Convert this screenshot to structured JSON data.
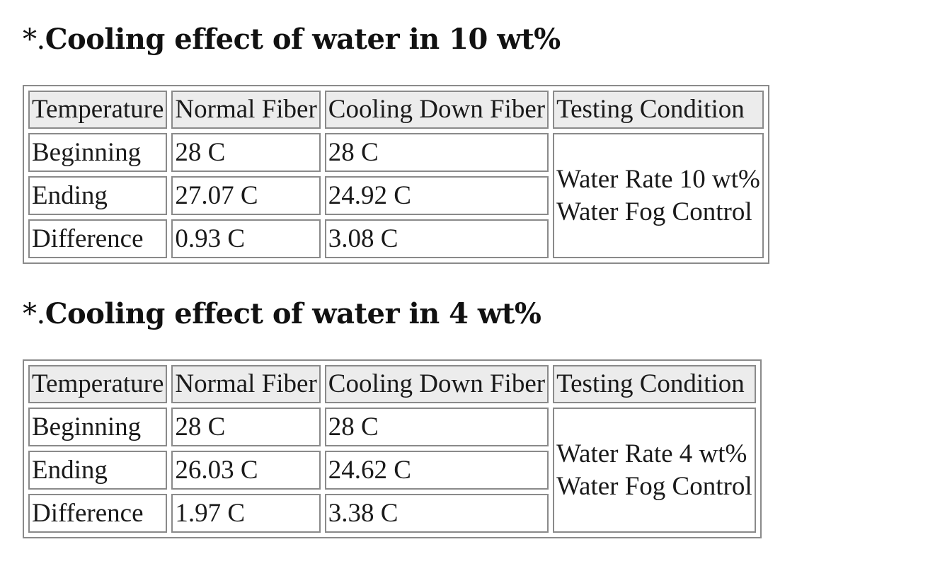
{
  "tables": [
    {
      "heading_mark": "*.",
      "heading_text": "Cooling effect of water in 10 wt%",
      "headers": [
        "Temperature",
        "Normal Fiber",
        "Cooling Down Fiber",
        "Testing Condition"
      ],
      "rows": [
        {
          "label": "Beginning",
          "normal": "28 C",
          "cooling": "28 C"
        },
        {
          "label": "Ending",
          "normal": "27.07 C",
          "cooling": "24.92 C"
        },
        {
          "label": "Difference",
          "normal": "0.93 C",
          "cooling": "3.08 C"
        }
      ],
      "condition": [
        "Water Rate 10 wt%",
        "Water Fog Control"
      ]
    },
    {
      "heading_mark": "*.",
      "heading_text": "Cooling effect of water in 4 wt%",
      "headers": [
        "Temperature",
        "Normal Fiber",
        "Cooling Down Fiber",
        "Testing Condition"
      ],
      "rows": [
        {
          "label": "Beginning",
          "normal": "28 C",
          "cooling": "28 C"
        },
        {
          "label": "Ending",
          "normal": "26.03 C",
          "cooling": "24.62 C"
        },
        {
          "label": "Difference",
          "normal": "1.97 C",
          "cooling": "3.38 C"
        }
      ],
      "condition": [
        "Water Rate 4 wt%",
        "Water Fog Control"
      ]
    }
  ]
}
